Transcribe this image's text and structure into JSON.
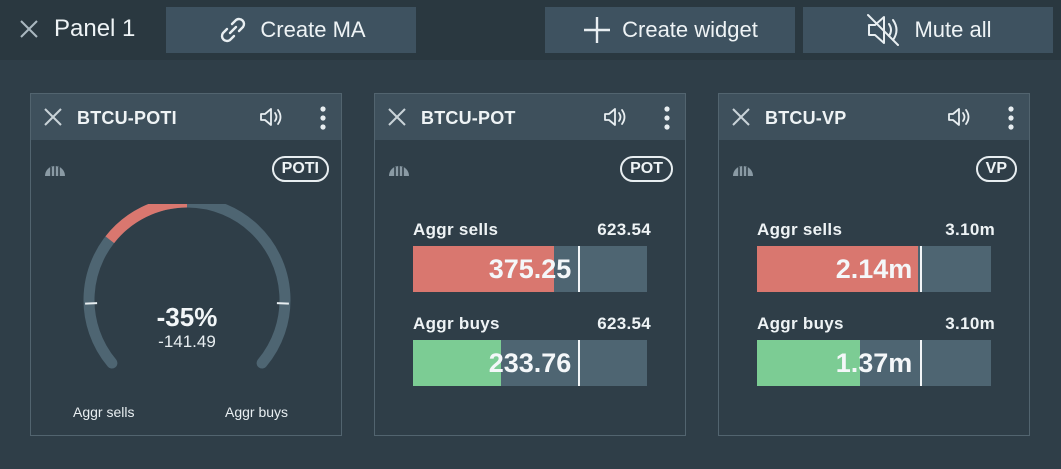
{
  "topbar": {
    "panel_title": "Panel 1",
    "create_ma_label": "Create MA",
    "create_widget_label": "Create widget",
    "mute_all_label": "Mute all"
  },
  "widgets": [
    {
      "title": "BTCU-POTI",
      "badge": "POTI",
      "type": "gauge",
      "percent_text": "-35%",
      "value_text": "-141.49",
      "left_label": "Aggr sells",
      "right_label": "Aggr buys",
      "sell_fraction": 0.2
    },
    {
      "title": "BTCU-POT",
      "badge": "POT",
      "type": "bars",
      "sells": {
        "label": "Aggr sells",
        "total": "623.54",
        "value": "375.25",
        "fraction": 0.602
      },
      "buys": {
        "label": "Aggr buys",
        "total": "623.54",
        "value": "233.76",
        "fraction": 0.375
      },
      "marker_fraction": 0.71
    },
    {
      "title": "BTCU-VP",
      "badge": "VP",
      "type": "bars",
      "sells": {
        "label": "Aggr sells",
        "total": "3.10m",
        "value": "2.14m",
        "fraction": 0.69
      },
      "buys": {
        "label": "Aggr buys",
        "total": "3.10m",
        "value": "1.37m",
        "fraction": 0.442
      },
      "marker_fraction": 0.7
    }
  ],
  "colors": {
    "background": "#2f3e48",
    "header": "#3e505c",
    "sell": "#d9776f",
    "buy": "#7ccc94",
    "track": "#4e6572"
  },
  "icons": {
    "close": "close-icon",
    "link": "link-icon",
    "plus": "plus-icon",
    "mute": "mute-icon",
    "sound": "sound-icon",
    "menu": "kebab-menu-icon",
    "signal": "signal-icon"
  }
}
